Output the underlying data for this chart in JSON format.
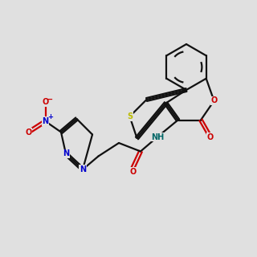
{
  "bg_color": "#e0e0e0",
  "bond_color": "#111111",
  "S_color": "#bbbb00",
  "O_color": "#cc0000",
  "N_color": "#0000cc",
  "NH_color": "#006666",
  "lw": 1.6,
  "fs": 7.0
}
